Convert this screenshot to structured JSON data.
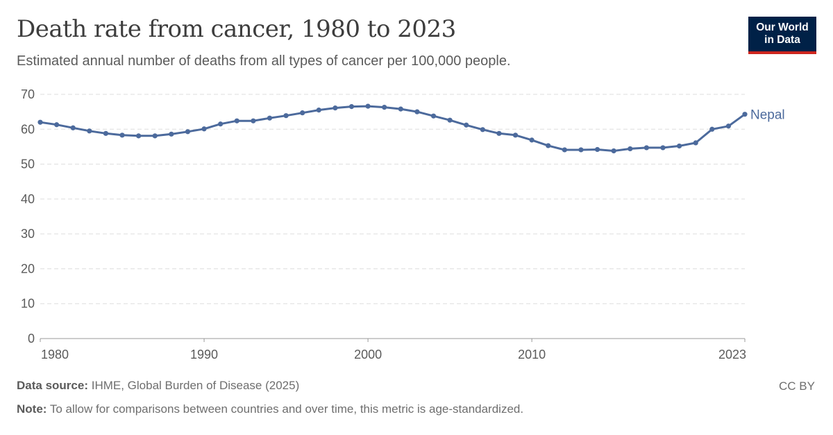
{
  "header": {
    "title": "Death rate from cancer, 1980 to 2023",
    "subtitle": "Estimated annual number of deaths from all types of cancer per 100,000 people."
  },
  "logo": {
    "line1": "Our World",
    "line2": "in Data"
  },
  "footer": {
    "source_label": "Data source:",
    "source_text": "IHME, Global Burden of Disease (2025)",
    "note_label": "Note:",
    "note_text": "To allow for comparisons between countries and over time, this metric is age-standardized.",
    "license": "CC BY"
  },
  "colors": {
    "series": "#4c6a9c",
    "grid": "#dddddd",
    "logo_bg": "#002147",
    "logo_accent": "#ce261e"
  },
  "chart_data": {
    "type": "line",
    "ylim": [
      0,
      70
    ],
    "xlim": [
      1980,
      2023
    ],
    "y_ticks": [
      0,
      10,
      20,
      30,
      40,
      50,
      60,
      70
    ],
    "x_tick_labels": [
      "1980",
      "1990",
      "2000",
      "2010",
      "2023"
    ],
    "grid": "horizontal-dashed",
    "series": [
      {
        "name": "Nepal",
        "x": [
          1980,
          1981,
          1982,
          1983,
          1984,
          1985,
          1986,
          1987,
          1988,
          1989,
          1990,
          1991,
          1992,
          1993,
          1994,
          1995,
          1996,
          1997,
          1998,
          1999,
          2000,
          2001,
          2002,
          2003,
          2004,
          2005,
          2006,
          2007,
          2008,
          2009,
          2010,
          2011,
          2012,
          2013,
          2014,
          2015,
          2016,
          2017,
          2018,
          2019,
          2020,
          2021,
          2022,
          2023
        ],
        "values": [
          62.0,
          61.3,
          60.4,
          59.5,
          58.8,
          58.3,
          58.1,
          58.1,
          58.6,
          59.3,
          60.1,
          61.5,
          62.4,
          62.4,
          63.2,
          63.9,
          64.7,
          65.5,
          66.1,
          66.5,
          66.6,
          66.3,
          65.8,
          65.0,
          63.8,
          62.6,
          61.2,
          59.9,
          58.8,
          58.3,
          56.9,
          55.3,
          54.1,
          54.1,
          54.2,
          53.8,
          54.4,
          54.7,
          54.7,
          55.2,
          56.1,
          60.0,
          60.9,
          64.3
        ]
      }
    ]
  }
}
